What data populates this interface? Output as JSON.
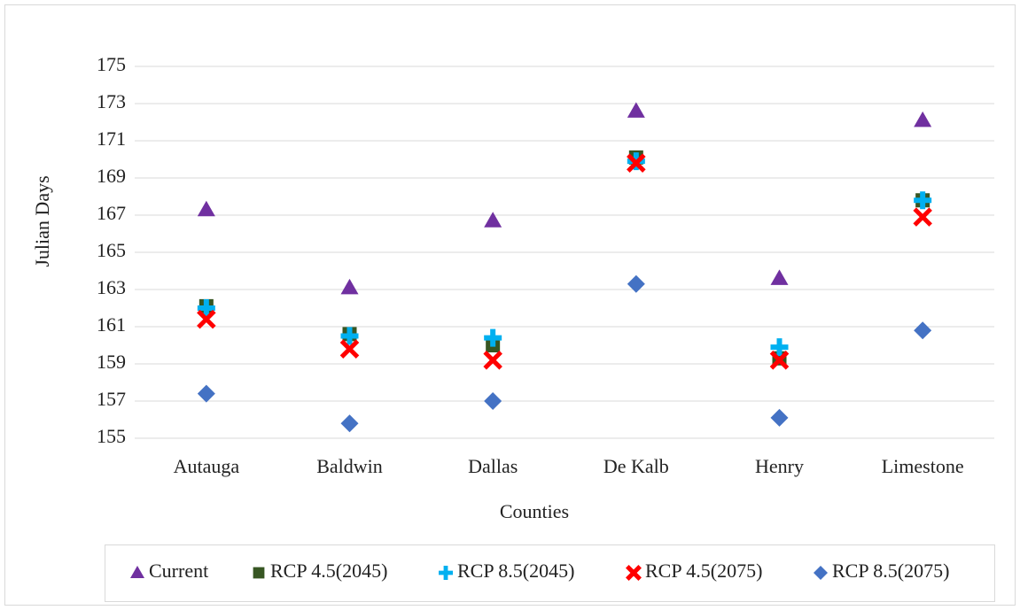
{
  "chart_data": {
    "type": "scatter",
    "x_label": "Counties",
    "y_label": "Julian Days",
    "categories": [
      "Autauga",
      "Baldwin",
      "Dallas",
      "De Kalb",
      "Henry",
      "Limestone"
    ],
    "series": [
      {
        "name": "Current",
        "color": "#7030a0",
        "marker": "triangle",
        "values": [
          167.3,
          163.1,
          166.7,
          172.6,
          163.6,
          172.1
        ]
      },
      {
        "name": "RCP 4.5(2045)",
        "color": "#375623",
        "marker": "square",
        "values": [
          162.1,
          160.6,
          160.0,
          170.1,
          159.3,
          167.8
        ]
      },
      {
        "name": "RCP 8.5(2045)",
        "color": "#00b0f0",
        "marker": "plus",
        "values": [
          162.0,
          160.5,
          160.4,
          169.9,
          159.9,
          167.8
        ]
      },
      {
        "name": "RCP 4.5(2075)",
        "color": "#ff0000",
        "marker": "x",
        "values": [
          161.4,
          159.8,
          159.2,
          169.8,
          159.2,
          166.9
        ]
      },
      {
        "name": "RCP 8.5(2075)",
        "color": "#4472c4",
        "marker": "diamond",
        "values": [
          157.4,
          155.8,
          157.0,
          163.3,
          156.1,
          160.8
        ]
      }
    ],
    "ylim": [
      155,
      175
    ],
    "yticks": [
      155,
      157,
      159,
      161,
      163,
      165,
      167,
      169,
      171,
      173,
      175
    ],
    "grid": true,
    "legend": "bottom"
  }
}
